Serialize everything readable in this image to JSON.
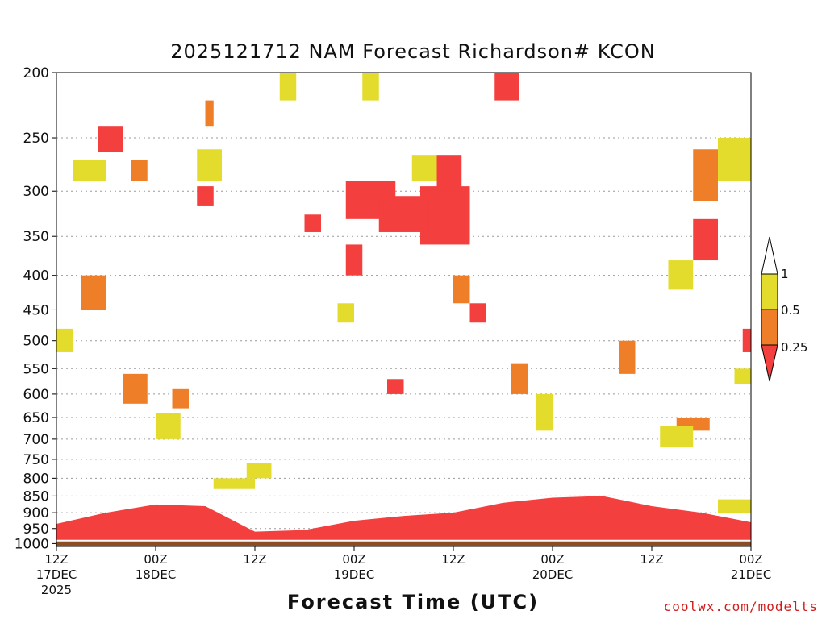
{
  "chart_data": {
    "type": "heatmap",
    "title": "2025121712 NAM Forecast Richardson# KCON",
    "xlabel": "Forecast Time (UTC)",
    "ylabel": "",
    "credit": "coolwx.com/modelts",
    "xlim": [
      0,
      84
    ],
    "ylim": [
      1010,
      200
    ],
    "y_ticks": [
      200,
      250,
      300,
      350,
      400,
      450,
      500,
      550,
      600,
      650,
      700,
      750,
      800,
      850,
      900,
      950,
      1000
    ],
    "x_ticks": [
      {
        "hour": 0,
        "line1": "12Z",
        "line2": "17DEC",
        "line3": "2025"
      },
      {
        "hour": 12,
        "line1": "00Z",
        "line2": "18DEC",
        "line3": ""
      },
      {
        "hour": 24,
        "line1": "12Z",
        "line2": "",
        "line3": ""
      },
      {
        "hour": 36,
        "line1": "00Z",
        "line2": "19DEC",
        "line3": ""
      },
      {
        "hour": 48,
        "line1": "12Z",
        "line2": "",
        "line3": ""
      },
      {
        "hour": 60,
        "line1": "00Z",
        "line2": "20DEC",
        "line3": ""
      },
      {
        "hour": 72,
        "line1": "12Z",
        "line2": "",
        "line3": ""
      },
      {
        "hour": 84,
        "line1": "00Z",
        "line2": "21DEC",
        "line3": ""
      }
    ],
    "legend": {
      "position": "right",
      "labels": [
        "1",
        "0.5",
        "0.25"
      ],
      "bins": [
        {
          "name": "Ri < 0.25",
          "color": "#f43f3f"
        },
        {
          "name": "0.25 - 0.5",
          "color": "#ee7f28"
        },
        {
          "name": "0.5 - 1",
          "color": "#e3dc2c"
        },
        {
          "name": "> 1",
          "color": "#ffffff"
        }
      ]
    },
    "colors": {
      "high": "#e3dc2c",
      "mid": "#ee7f28",
      "low": "#f43f3f",
      "ground": "#8c4c24"
    },
    "ground_pressure": 990,
    "surface_layer": {
      "hours": [
        0,
        6,
        12,
        18,
        24,
        30,
        36,
        42,
        48,
        54,
        60,
        66,
        72,
        78,
        84
      ],
      "top_pressure": [
        935,
        900,
        875,
        880,
        960,
        955,
        925,
        910,
        900,
        870,
        855,
        850,
        880,
        900,
        930
      ]
    },
    "regions": [
      {
        "bin": "low",
        "h0": 44,
        "h1": 50,
        "p0": 295,
        "p1": 360
      },
      {
        "bin": "low",
        "h0": 35,
        "h1": 41,
        "p0": 290,
        "p1": 330
      },
      {
        "bin": "low",
        "h0": 39,
        "h1": 45,
        "p0": 305,
        "p1": 345
      },
      {
        "bin": "low",
        "h0": 46,
        "h1": 49,
        "p0": 265,
        "p1": 300
      },
      {
        "bin": "low",
        "h0": 53,
        "h1": 56,
        "p0": 200,
        "p1": 220
      },
      {
        "bin": "low",
        "h0": 5,
        "h1": 8,
        "p0": 240,
        "p1": 262
      },
      {
        "bin": "low",
        "h0": 17,
        "h1": 19,
        "p0": 295,
        "p1": 315
      },
      {
        "bin": "low",
        "h0": 35,
        "h1": 37,
        "p0": 360,
        "p1": 400
      },
      {
        "bin": "low",
        "h0": 30,
        "h1": 32,
        "p0": 325,
        "p1": 345
      },
      {
        "bin": "low",
        "h0": 50,
        "h1": 52,
        "p0": 440,
        "p1": 470
      },
      {
        "bin": "low",
        "h0": 40,
        "h1": 42,
        "p0": 570,
        "p1": 600
      },
      {
        "bin": "low",
        "h0": 77,
        "h1": 80,
        "p0": 330,
        "p1": 380
      },
      {
        "bin": "low",
        "h0": 83,
        "h1": 84,
        "p0": 480,
        "p1": 520
      },
      {
        "bin": "mid",
        "h0": 18,
        "h1": 19,
        "p0": 220,
        "p1": 240
      },
      {
        "bin": "mid",
        "h0": 9,
        "h1": 11,
        "p0": 270,
        "p1": 290
      },
      {
        "bin": "mid",
        "h0": 8,
        "h1": 11,
        "p0": 560,
        "p1": 620
      },
      {
        "bin": "mid",
        "h0": 77,
        "h1": 80,
        "p0": 260,
        "p1": 310
      },
      {
        "bin": "mid",
        "h0": 55,
        "h1": 57,
        "p0": 540,
        "p1": 600
      },
      {
        "bin": "mid",
        "h0": 14,
        "h1": 16,
        "p0": 590,
        "p1": 630
      },
      {
        "bin": "mid",
        "h0": 68,
        "h1": 70,
        "p0": 500,
        "p1": 560
      },
      {
        "bin": "mid",
        "h0": 75,
        "h1": 79,
        "p0": 650,
        "p1": 680
      },
      {
        "bin": "mid",
        "h0": 48,
        "h1": 50,
        "p0": 400,
        "p1": 440
      },
      {
        "bin": "mid",
        "h0": 3,
        "h1": 6,
        "p0": 400,
        "p1": 450
      },
      {
        "bin": "high",
        "h0": 2,
        "h1": 6,
        "p0": 270,
        "p1": 290
      },
      {
        "bin": "high",
        "h0": 17,
        "h1": 20,
        "p0": 260,
        "p1": 290
      },
      {
        "bin": "high",
        "h0": 27,
        "h1": 29,
        "p0": 200,
        "p1": 220
      },
      {
        "bin": "high",
        "h0": 37,
        "h1": 39,
        "p0": 200,
        "p1": 220
      },
      {
        "bin": "high",
        "h0": 43,
        "h1": 46,
        "p0": 265,
        "p1": 290
      },
      {
        "bin": "high",
        "h0": 80,
        "h1": 84,
        "p0": 250,
        "p1": 290
      },
      {
        "bin": "high",
        "h0": 12,
        "h1": 15,
        "p0": 640,
        "p1": 700
      },
      {
        "bin": "high",
        "h0": 19,
        "h1": 24,
        "p0": 800,
        "p1": 830
      },
      {
        "bin": "high",
        "h0": 23,
        "h1": 26,
        "p0": 760,
        "p1": 800
      },
      {
        "bin": "high",
        "h0": 58,
        "h1": 60,
        "p0": 600,
        "p1": 680
      },
      {
        "bin": "high",
        "h0": 73,
        "h1": 77,
        "p0": 670,
        "p1": 720
      },
      {
        "bin": "high",
        "h0": 80,
        "h1": 84,
        "p0": 860,
        "p1": 900
      },
      {
        "bin": "high",
        "h0": 34,
        "h1": 36,
        "p0": 440,
        "p1": 470
      },
      {
        "bin": "high",
        "h0": 0,
        "h1": 2,
        "p0": 480,
        "p1": 520
      },
      {
        "bin": "high",
        "h0": 74,
        "h1": 77,
        "p0": 380,
        "p1": 420
      },
      {
        "bin": "high",
        "h0": 82,
        "h1": 84,
        "p0": 550,
        "p1": 580
      }
    ]
  }
}
